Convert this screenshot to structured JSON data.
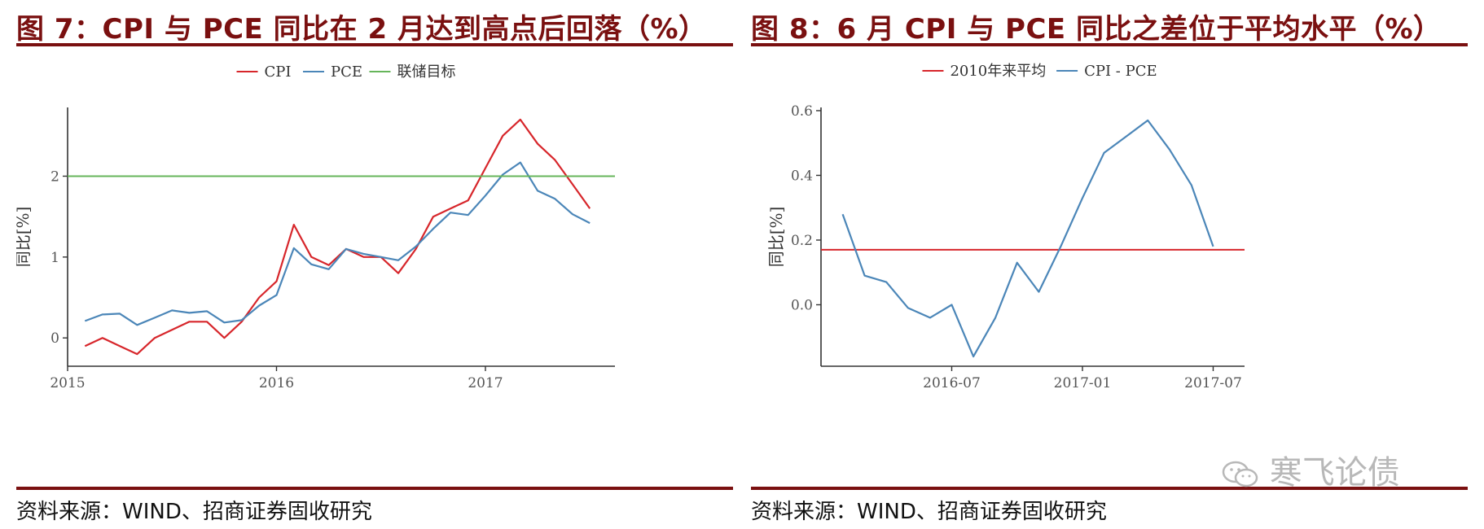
{
  "left": {
    "fig_title": "图 7：CPI 与 PCE 同比在 2 月达到高点后回落（%）",
    "source": "资料来源：WIND、招商证券固收研究"
  },
  "right": {
    "fig_title": "图 8：6 月 CPI 与 PCE 同比之差位于平均水平（%）",
    "source": "资料来源：WIND、招商证券固收研究"
  },
  "watermark": {
    "text": "寒飞论债"
  },
  "chart_data": [
    {
      "type": "line",
      "ylabel": "同比[%]",
      "xlabel": "",
      "xlim": [
        2015.0,
        2017.62
      ],
      "ylim": [
        -0.35,
        2.85
      ],
      "x_ticks": [
        2015,
        2016,
        2017
      ],
      "x_tick_labels": [
        "2015",
        "2016",
        "2017"
      ],
      "y_ticks": [
        0,
        1,
        2
      ],
      "y_tick_labels": [
        "0",
        "1",
        "2"
      ],
      "grid": false,
      "legend_position": "top",
      "x": [
        2015.083,
        2015.167,
        2015.25,
        2015.333,
        2015.417,
        2015.5,
        2015.583,
        2015.667,
        2015.75,
        2015.833,
        2015.917,
        2016.0,
        2016.083,
        2016.167,
        2016.25,
        2016.333,
        2016.417,
        2016.5,
        2016.583,
        2016.667,
        2016.75,
        2016.833,
        2016.917,
        2017.0,
        2017.083,
        2017.167,
        2017.25,
        2017.333,
        2017.417,
        2017.5
      ],
      "series": [
        {
          "name": "CPI",
          "color": "#d7262b",
          "values": [
            -0.1,
            0.0,
            -0.1,
            -0.2,
            0.0,
            0.1,
            0.2,
            0.2,
            0.0,
            0.2,
            0.5,
            0.7,
            1.4,
            1.0,
            0.9,
            1.1,
            1.0,
            1.0,
            0.8,
            1.1,
            1.5,
            1.6,
            1.7,
            2.1,
            2.5,
            2.7,
            2.4,
            2.2,
            1.9,
            1.6
          ]
        },
        {
          "name": "PCE",
          "color": "#4b86b8",
          "values": [
            0.21,
            0.29,
            0.3,
            0.16,
            0.25,
            0.34,
            0.31,
            0.33,
            0.19,
            0.22,
            0.4,
            0.53,
            1.11,
            0.91,
            0.85,
            1.1,
            1.04,
            1.0,
            0.96,
            1.13,
            1.35,
            1.55,
            1.52,
            1.76,
            2.02,
            2.17,
            1.82,
            1.72,
            1.53,
            1.42
          ]
        },
        {
          "name": "联储目标",
          "color": "#66b55a",
          "type": "hline",
          "y": 2.0
        }
      ]
    },
    {
      "type": "line",
      "ylabel": "同比[%]",
      "xlabel": "",
      "xlim": [
        2016.0,
        2017.62
      ],
      "ylim": [
        -0.19,
        0.61
      ],
      "x_ticks": [
        2016.5,
        2017.0,
        2017.5
      ],
      "x_tick_labels": [
        "2016-07",
        "2017-01",
        "2017-07"
      ],
      "y_ticks": [
        0.0,
        0.2,
        0.4,
        0.6
      ],
      "y_tick_labels": [
        "0.0",
        "0.2",
        "0.4",
        "0.6"
      ],
      "grid": false,
      "legend_position": "top",
      "x": [
        2016.083,
        2016.167,
        2016.25,
        2016.333,
        2016.417,
        2016.5,
        2016.583,
        2016.667,
        2016.75,
        2016.833,
        2016.917,
        2017.0,
        2017.083,
        2017.167,
        2017.25,
        2017.333,
        2017.417,
        2017.5
      ],
      "series": [
        {
          "name": "2010年来平均",
          "color": "#d7262b",
          "type": "hline",
          "y": 0.17
        },
        {
          "name": "CPI - PCE",
          "color": "#4b86b8",
          "values": [
            0.28,
            0.09,
            0.07,
            -0.01,
            -0.04,
            0.0,
            -0.16,
            -0.04,
            0.13,
            0.04,
            0.18,
            0.33,
            0.47,
            0.52,
            0.57,
            0.48,
            0.37,
            0.18
          ]
        }
      ]
    }
  ]
}
